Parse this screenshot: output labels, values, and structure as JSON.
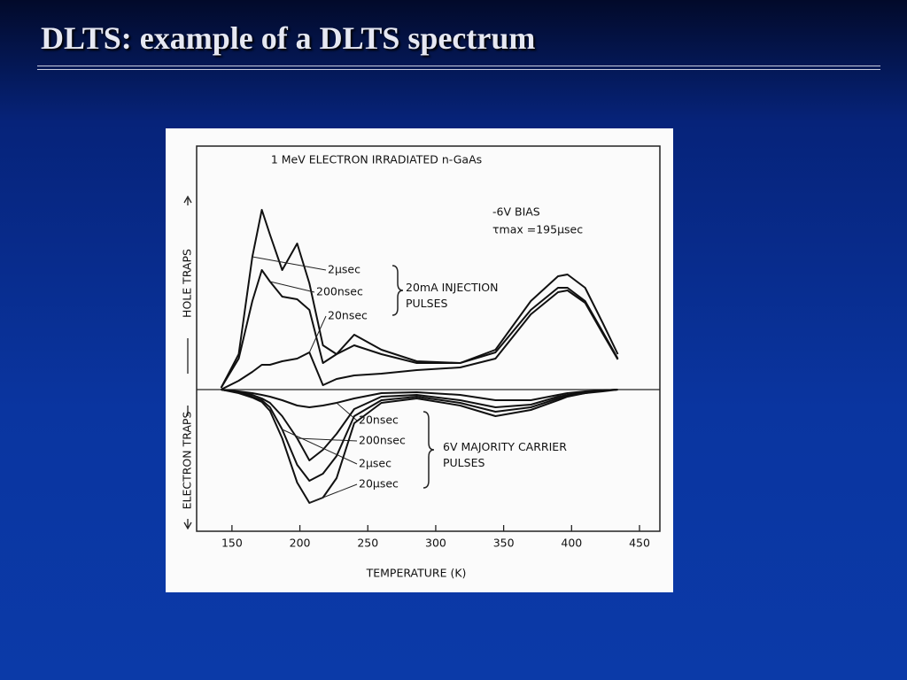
{
  "slide_title": "DLTS: example of a DLTS spectrum",
  "chart_data": {
    "type": "line",
    "title": "1 MeV ELECTRON IRRADIATED n-GaAs",
    "annotations": [
      "-6V BIAS",
      "τmax =195μsec",
      "20mA INJECTION PULSES",
      "6V MAJORITY CARRIER PULSES"
    ],
    "x_label": "TEMPERATURE (K)",
    "y_labels": [
      "HOLE TRAPS",
      "ELECTRON TRAPS"
    ],
    "x": [
      142,
      155,
      165,
      172,
      178,
      187,
      198,
      207,
      217,
      227,
      240,
      260,
      286,
      318,
      344,
      370,
      390,
      397,
      410,
      423,
      434
    ],
    "xlim": [
      124,
      465
    ],
    "xticks": [
      150,
      200,
      250,
      300,
      350,
      400,
      450
    ],
    "ylim": [
      -16,
      27.5
    ],
    "series": [
      {
        "name": "2μsec",
        "color": "#111111",
        "values": [
          0.2,
          4,
          15,
          20.3,
          17.5,
          13.5,
          16.5,
          12,
          5,
          4,
          6.2,
          4.5,
          3.2,
          3,
          4.5,
          10,
          12.8,
          13,
          11.5,
          7.5,
          4
        ]
      },
      {
        "name": "200nsec",
        "color": "#111111",
        "values": [
          0.2,
          3.5,
          10,
          13.5,
          12.2,
          10.5,
          10.2,
          9,
          3,
          4,
          5,
          4,
          3,
          3,
          4.2,
          9,
          11.5,
          11.5,
          10,
          6.5,
          3.5
        ]
      },
      {
        "name": "20nsec",
        "color": "#111111",
        "values": [
          0,
          1,
          2,
          2.8,
          2.8,
          3.2,
          3.5,
          4.2,
          0.5,
          1.2,
          1.6,
          1.8,
          2.2,
          2.5,
          3.5,
          8.5,
          11,
          11.2,
          9.8,
          6.3,
          3.4
        ]
      },
      {
        "name": "20nsec",
        "color": "#111111",
        "values": [
          0,
          -0.2,
          -0.4,
          -0.6,
          -0.8,
          -1.2,
          -1.8,
          -2,
          -1.8,
          -1.5,
          -1,
          -0.4,
          -0.3,
          -0.6,
          -1.2,
          -1.2,
          -0.6,
          -0.4,
          -0.2,
          -0.1,
          0
        ]
      },
      {
        "name": "200nsec",
        "color": "#111111",
        "values": [
          0,
          -0.3,
          -0.6,
          -1,
          -1.5,
          -3,
          -5.5,
          -8,
          -6.8,
          -5,
          -2.2,
          -0.8,
          -0.6,
          -1.2,
          -2,
          -1.7,
          -0.8,
          -0.6,
          -0.3,
          -0.1,
          0
        ]
      },
      {
        "name": "2μsec",
        "color": "#111111",
        "values": [
          0,
          -0.3,
          -0.8,
          -1.2,
          -2,
          -4.5,
          -8.5,
          -10.3,
          -9.5,
          -7.5,
          -3,
          -1.2,
          -0.8,
          -1.5,
          -2.5,
          -2,
          -1,
          -0.7,
          -0.4,
          -0.1,
          0
        ]
      },
      {
        "name": "20μsec",
        "color": "#111111",
        "values": [
          0,
          -0.4,
          -0.9,
          -1.4,
          -2.4,
          -5.5,
          -10.5,
          -12.8,
          -12.2,
          -10,
          -3.8,
          -1.5,
          -1,
          -1.8,
          -3,
          -2.3,
          -1.2,
          -0.8,
          -0.4,
          -0.2,
          0
        ]
      }
    ]
  }
}
